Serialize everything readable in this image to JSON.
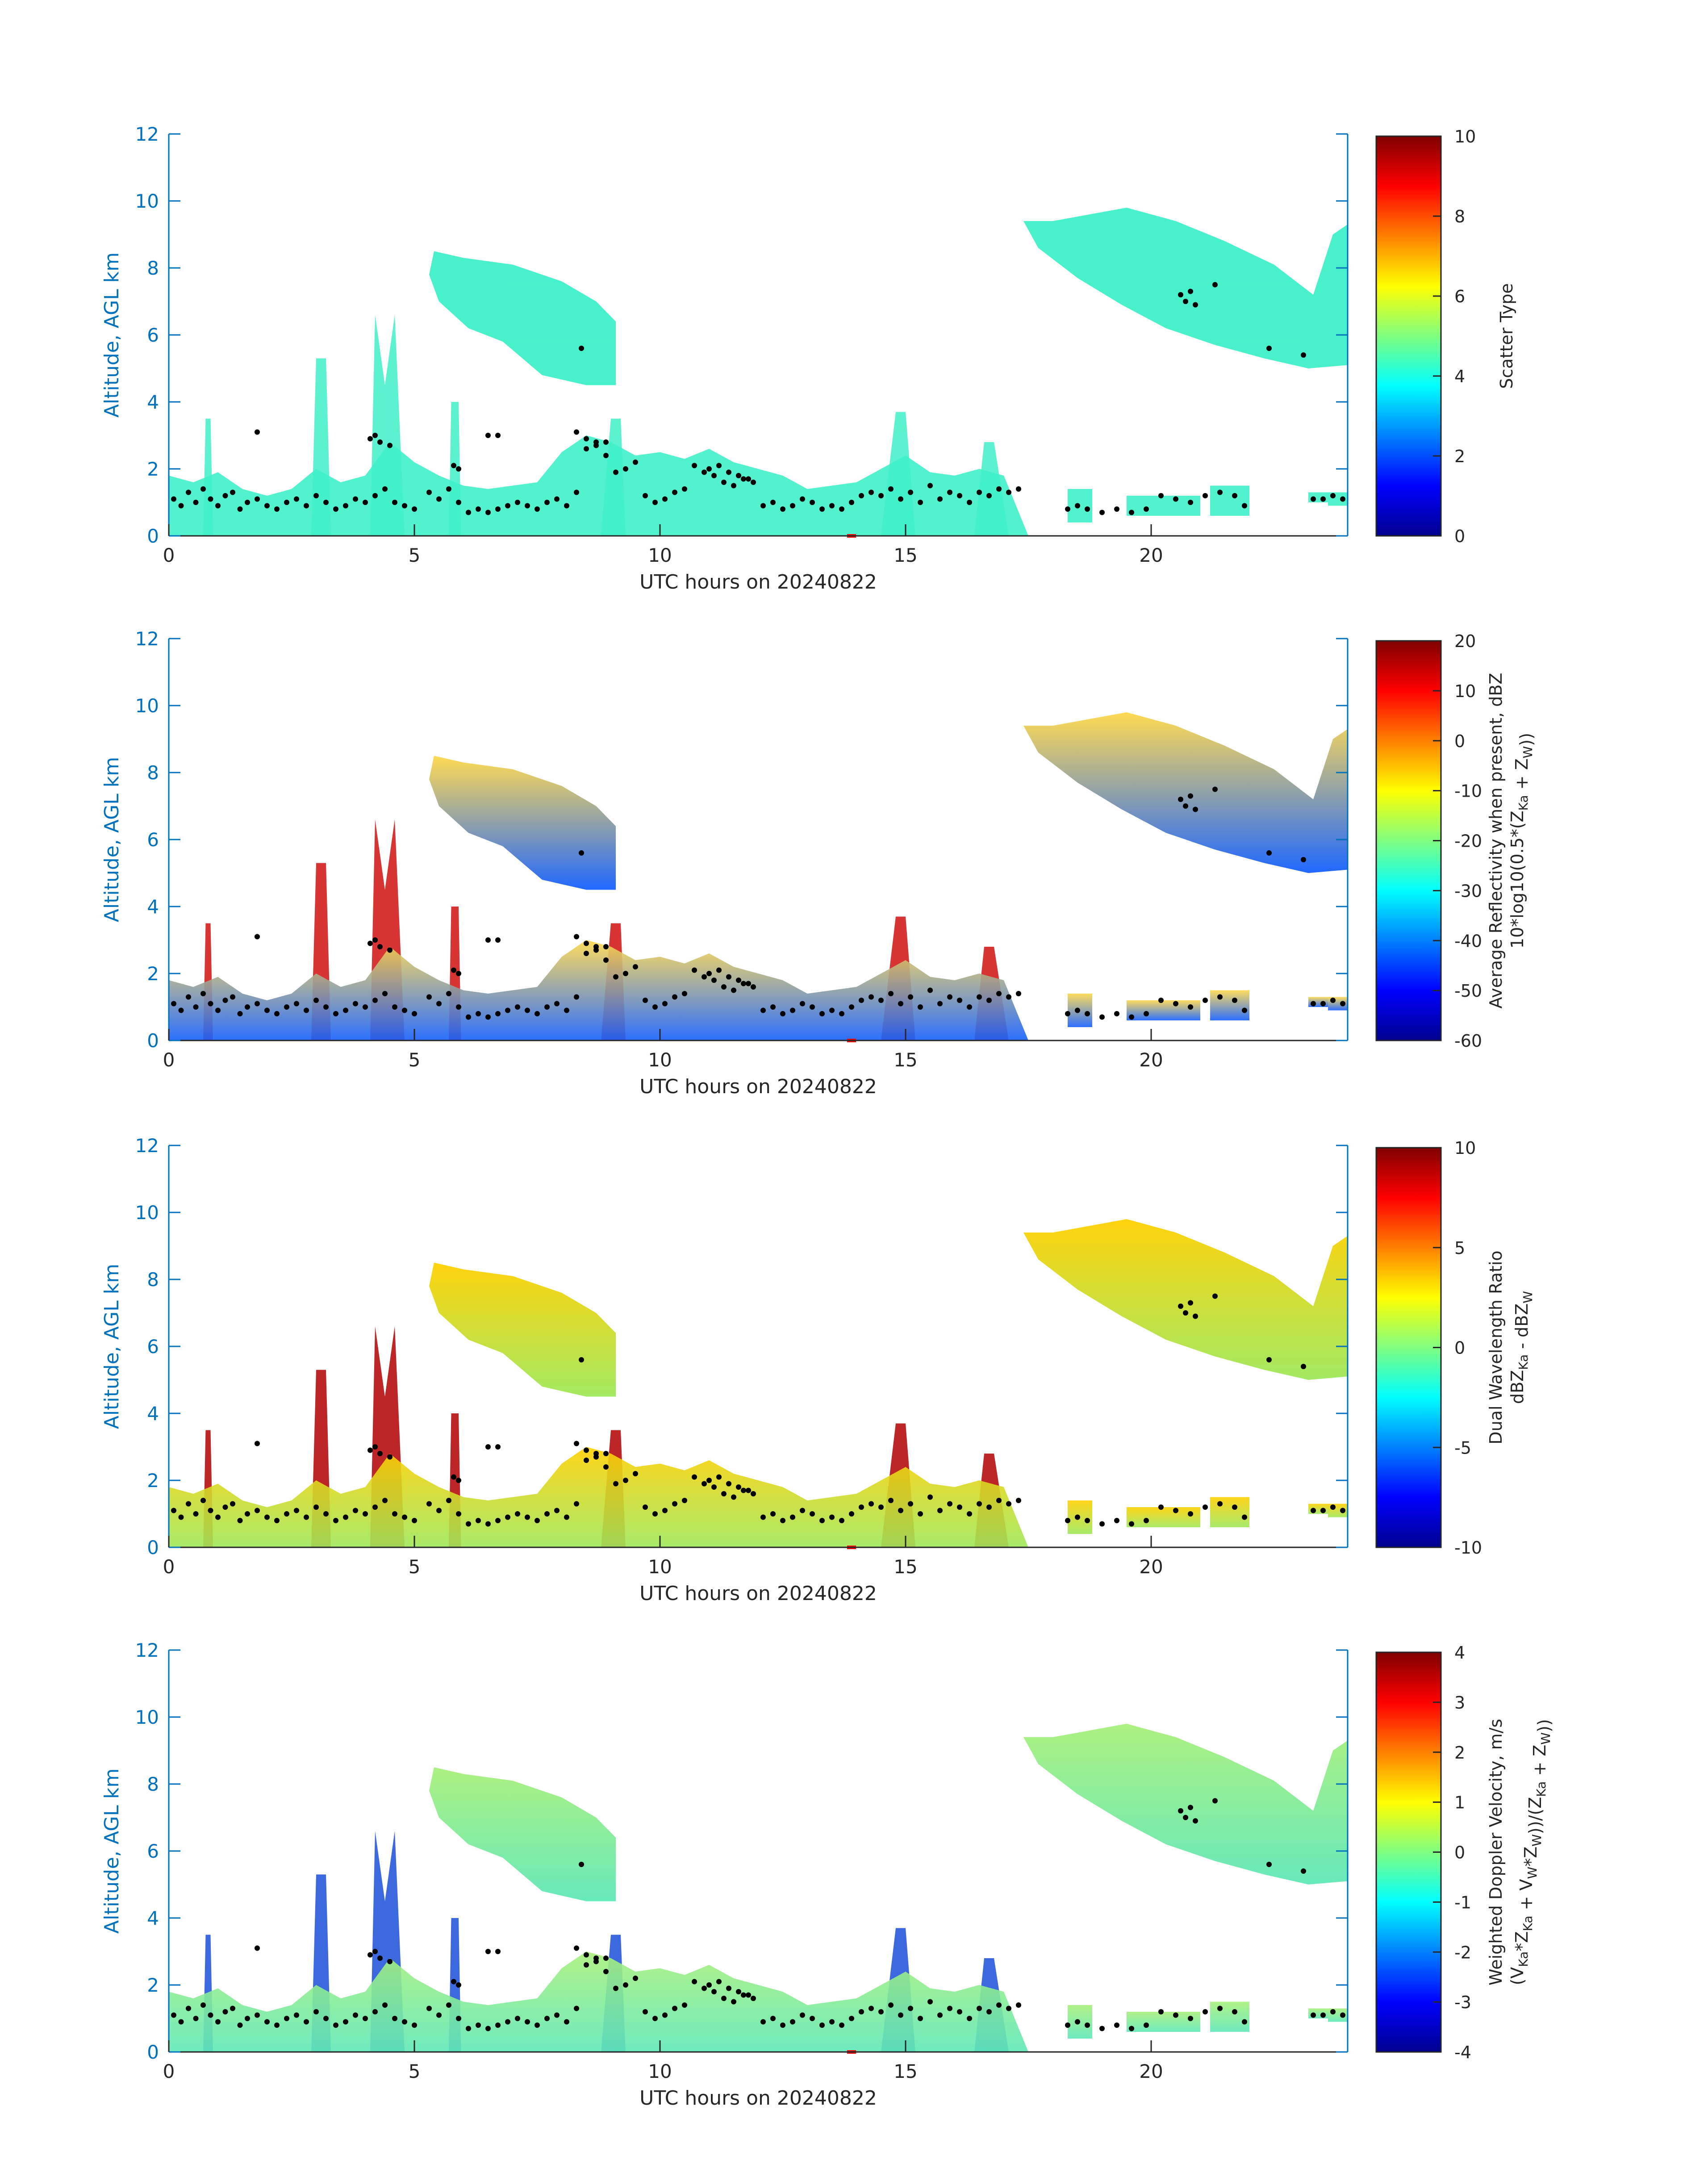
{
  "figure": {
    "date_label": "UTC hours on 20240822"
  },
  "colors": {
    "axis": "#0072BD",
    "marker": "#000000",
    "time_marker": "#ff0000",
    "cloud_scatter_type": "#3ff0c8",
    "colormap": "jet"
  },
  "chart_data": [
    {
      "type": "heatmap",
      "name": "scatter-type",
      "xlabel": "UTC hours on 20240822",
      "ylabel": "Altitude, AGL km",
      "xlim": [
        0,
        24
      ],
      "ylim": [
        0,
        12
      ],
      "xticks": [
        "0",
        "5",
        "10",
        "15",
        "20"
      ],
      "yticks": [
        "0",
        "2",
        "4",
        "6",
        "8",
        "10",
        "12"
      ],
      "colorbar": {
        "label_lines": [
          "Scatter Type"
        ],
        "clim": [
          0,
          10
        ],
        "ticks": [
          "0",
          "2",
          "4",
          "6",
          "8",
          "10"
        ]
      },
      "grid": false
    },
    {
      "type": "heatmap",
      "name": "average-reflectivity",
      "xlabel": "UTC hours on 20240822",
      "ylabel": "Altitude, AGL km",
      "xlim": [
        0,
        24
      ],
      "ylim": [
        0,
        12
      ],
      "xticks": [
        "0",
        "5",
        "10",
        "15",
        "20"
      ],
      "yticks": [
        "0",
        "2",
        "4",
        "6",
        "8",
        "10",
        "12"
      ],
      "colorbar": {
        "label_lines": [
          "Average Reflectivity when present, dBZ",
          "10*log10(0.5*(Z_Ka + Z_W))"
        ],
        "clim": [
          -60,
          20
        ],
        "ticks": [
          "-60",
          "-50",
          "-40",
          "-30",
          "-20",
          "-10",
          "0",
          "10",
          "20"
        ]
      },
      "grid": false
    },
    {
      "type": "heatmap",
      "name": "dual-wavelength-ratio",
      "xlabel": "UTC hours on 20240822",
      "ylabel": "Altitude, AGL km",
      "xlim": [
        0,
        24
      ],
      "ylim": [
        0,
        12
      ],
      "xticks": [
        "0",
        "5",
        "10",
        "15",
        "20"
      ],
      "yticks": [
        "0",
        "2",
        "4",
        "6",
        "8",
        "10",
        "12"
      ],
      "colorbar": {
        "label_lines": [
          "Dual Wavelength Ratio",
          "dBZ_Ka - dBZ_W"
        ],
        "clim": [
          -10,
          10
        ],
        "ticks": [
          "-10",
          "-5",
          "0",
          "5",
          "10"
        ]
      },
      "grid": false
    },
    {
      "type": "heatmap",
      "name": "weighted-doppler-velocity",
      "xlabel": "UTC hours on 20240822",
      "ylabel": "Altitude, AGL km",
      "xlim": [
        0,
        24
      ],
      "ylim": [
        0,
        12
      ],
      "xticks": [
        "0",
        "5",
        "10",
        "15",
        "20"
      ],
      "yticks": [
        "0",
        "2",
        "4",
        "6",
        "8",
        "10",
        "12"
      ],
      "colorbar": {
        "label_lines": [
          "Weighted Doppler Velocity, m/s",
          "(V_Ka*Z_Ka + V_W*Z_W))/(Z_Ka + Z_W))"
        ],
        "clim": [
          -4,
          4
        ],
        "ticks": [
          "-4",
          "-3",
          "-2",
          "-1",
          "0",
          "1",
          "2",
          "3",
          "4"
        ]
      },
      "grid": false
    }
  ],
  "cloud_regions": [
    {
      "name": "mid-level-cloud-a",
      "t": [
        5.3,
        5.4,
        6.0,
        7.0,
        8.0,
        8.7,
        9.1,
        9.1,
        8.5,
        7.6,
        6.8,
        6.1,
        5.5,
        5.3
      ],
      "z": [
        7.8,
        8.5,
        8.3,
        8.1,
        7.6,
        7.0,
        6.4,
        4.5,
        4.5,
        4.8,
        5.8,
        6.2,
        7.0,
        7.8
      ]
    },
    {
      "name": "upper-cloud-b",
      "t": [
        17.4,
        18.0,
        19.5,
        20.5,
        21.5,
        22.5,
        23.3,
        23.7,
        24.0,
        24.0,
        23.2,
        22.3,
        21.3,
        20.3,
        19.4,
        18.5,
        17.7,
        17.4
      ],
      "z": [
        9.4,
        9.4,
        9.8,
        9.4,
        8.8,
        8.1,
        7.2,
        9.0,
        9.3,
        5.1,
        5.0,
        5.3,
        5.7,
        6.2,
        6.9,
        7.7,
        8.6,
        9.4
      ]
    },
    {
      "name": "low-convection-1",
      "t": [
        0.7,
        0.75,
        0.85,
        0.9
      ],
      "z": [
        0.0,
        3.5,
        3.5,
        0.0
      ]
    },
    {
      "name": "low-convection-2",
      "t": [
        2.9,
        3.0,
        3.2,
        3.3
      ],
      "z": [
        0.0,
        5.3,
        5.3,
        0.0
      ]
    },
    {
      "name": "low-convection-3",
      "t": [
        4.1,
        4.2,
        4.4,
        4.6,
        4.8
      ],
      "z": [
        0.0,
        6.6,
        4.5,
        6.6,
        0.0
      ]
    },
    {
      "name": "low-convection-4",
      "t": [
        5.7,
        5.75,
        5.9,
        5.95
      ],
      "z": [
        0.0,
        4.0,
        4.0,
        0.0
      ]
    },
    {
      "name": "low-convection-5",
      "t": [
        8.8,
        9.0,
        9.2,
        9.3
      ],
      "z": [
        0.0,
        3.5,
        3.5,
        0.0
      ]
    },
    {
      "name": "low-convection-6",
      "t": [
        14.5,
        14.8,
        15.0,
        15.2
      ],
      "z": [
        0.0,
        3.7,
        3.7,
        0.0
      ]
    },
    {
      "name": "low-convection-7",
      "t": [
        16.4,
        16.6,
        16.8,
        17.1
      ],
      "z": [
        0.0,
        2.8,
        2.8,
        0.0
      ]
    }
  ],
  "low_layer": {
    "t": [
      0.0,
      0.5,
      1.0,
      1.5,
      2.0,
      2.5,
      3.0,
      3.5,
      4.0,
      4.5,
      5.0,
      5.5,
      6.0,
      6.5,
      7.0,
      7.5,
      8.0,
      8.5,
      9.0,
      9.5,
      10.0,
      10.5,
      11.0,
      11.5,
      12.0,
      12.5,
      13.0,
      13.5,
      14.0,
      14.5,
      15.0,
      15.5,
      16.0,
      16.5,
      17.0,
      17.5
    ],
    "top": [
      1.8,
      1.6,
      1.9,
      1.4,
      1.2,
      1.4,
      2.0,
      1.6,
      1.8,
      2.8,
      2.2,
      1.8,
      1.5,
      1.4,
      1.5,
      1.6,
      2.5,
      3.0,
      2.8,
      2.4,
      2.5,
      2.3,
      2.6,
      2.2,
      2.0,
      1.8,
      1.4,
      1.5,
      1.6,
      2.0,
      2.4,
      1.9,
      1.8,
      2.0,
      1.8,
      0.0
    ]
  },
  "late_fragments": [
    {
      "t": [
        18.3,
        18.8
      ],
      "z": [
        0.4,
        1.4
      ]
    },
    {
      "t": [
        19.5,
        21.0
      ],
      "z": [
        0.6,
        1.2
      ]
    },
    {
      "t": [
        21.2,
        22.0
      ],
      "z": [
        0.6,
        1.5
      ]
    },
    {
      "t": [
        23.2,
        23.6
      ],
      "z": [
        1.0,
        1.3
      ]
    },
    {
      "t": [
        23.6,
        24.0
      ],
      "z": [
        0.9,
        1.3
      ]
    }
  ],
  "cloud_base_markers": {
    "t": [
      0.1,
      0.25,
      0.4,
      0.55,
      0.7,
      0.85,
      1.0,
      1.15,
      1.3,
      1.45,
      1.6,
      1.8,
      2.0,
      2.2,
      2.4,
      2.6,
      2.8,
      3.0,
      3.2,
      3.4,
      3.6,
      3.8,
      4.0,
      4.2,
      4.4,
      4.6,
      4.8,
      5.0,
      5.3,
      5.5,
      5.7,
      5.9,
      6.1,
      6.3,
      6.5,
      6.7,
      6.9,
      7.1,
      7.3,
      7.5,
      7.7,
      7.9,
      8.1,
      8.3,
      8.5,
      8.7,
      8.9,
      9.1,
      9.3,
      9.5,
      9.7,
      9.9,
      10.1,
      10.3,
      10.5,
      10.7,
      10.9,
      11.1,
      11.3,
      11.5,
      11.7,
      11.9,
      12.1,
      12.3,
      12.5,
      12.7,
      12.9,
      13.1,
      13.3,
      13.5,
      13.7,
      13.9,
      14.1,
      14.3,
      14.5,
      14.7,
      14.9,
      15.1,
      15.3,
      15.5,
      15.7,
      15.9,
      16.1,
      16.3,
      16.5,
      16.7,
      16.9,
      17.1,
      17.3,
      18.3,
      18.5,
      18.7,
      19.0,
      19.3,
      19.6,
      19.9,
      20.2,
      20.5,
      20.8,
      21.1,
      21.4,
      21.7,
      21.9,
      23.3,
      23.5,
      23.7,
      23.9,
      4.1,
      4.2,
      4.3,
      4.5,
      5.8,
      5.9,
      6.5,
      6.7,
      8.3,
      8.5,
      8.7,
      8.9,
      11.0,
      11.2,
      11.4,
      11.6,
      11.8,
      20.6,
      20.7,
      20.8,
      20.9,
      21.3,
      1.8,
      8.4,
      22.4,
      23.1
    ],
    "z": [
      1.1,
      0.9,
      1.3,
      1.0,
      1.4,
      1.1,
      0.9,
      1.2,
      1.3,
      0.8,
      1.0,
      1.1,
      0.9,
      0.8,
      1.0,
      1.1,
      0.9,
      1.2,
      1.0,
      0.8,
      0.9,
      1.1,
      1.0,
      1.2,
      1.4,
      1.0,
      0.9,
      0.8,
      1.3,
      1.1,
      1.4,
      1.0,
      0.7,
      0.8,
      0.7,
      0.8,
      0.9,
      1.0,
      0.9,
      0.8,
      1.0,
      1.1,
      0.9,
      1.3,
      2.6,
      2.8,
      2.4,
      1.9,
      2.0,
      2.2,
      1.2,
      1.0,
      1.1,
      1.3,
      1.4,
      2.1,
      1.9,
      1.8,
      1.6,
      1.5,
      1.7,
      1.6,
      0.9,
      1.0,
      0.8,
      0.9,
      1.1,
      1.0,
      0.8,
      0.9,
      0.8,
      1.0,
      1.2,
      1.3,
      1.2,
      1.4,
      1.1,
      1.3,
      1.0,
      1.5,
      1.1,
      1.3,
      1.2,
      1.0,
      1.3,
      1.2,
      1.4,
      1.3,
      1.4,
      0.8,
      0.9,
      0.8,
      0.7,
      0.8,
      0.7,
      0.8,
      1.2,
      1.1,
      1.0,
      1.2,
      1.3,
      1.2,
      0.9,
      1.1,
      1.1,
      1.2,
      1.1,
      2.9,
      3.0,
      2.8,
      2.7,
      2.1,
      2.0,
      3.0,
      3.0,
      3.1,
      2.9,
      2.7,
      2.8,
      2.0,
      2.1,
      1.9,
      1.8,
      1.7,
      7.2,
      7.0,
      7.3,
      6.9,
      7.5,
      3.1,
      5.6,
      5.6,
      5.4
    ]
  },
  "time_marker": {
    "t": 13.9,
    "label": ""
  }
}
